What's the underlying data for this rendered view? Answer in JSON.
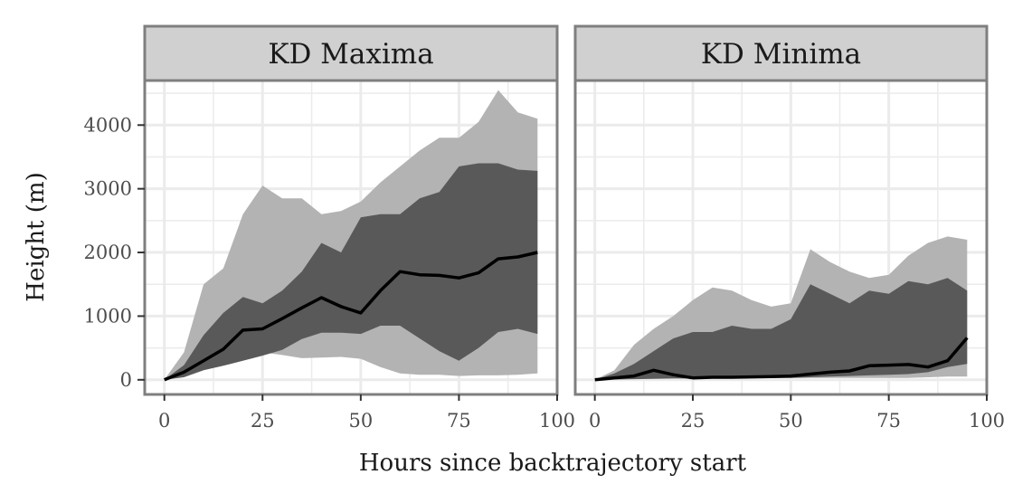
{
  "chart_data": {
    "type": "area",
    "xlabel": "Hours since backtrajectory start",
    "ylabel": "Height (m)",
    "xlim": [
      -5,
      100
    ],
    "ylim": [
      -230,
      4700
    ],
    "x_ticks": [
      0,
      25,
      50,
      75,
      100
    ],
    "y_ticks": [
      0,
      1000,
      2000,
      3000,
      4000
    ],
    "grid": true,
    "colors": {
      "outer_band": "#b3b3b3",
      "inner_band": "#595959",
      "median_line": "#000000",
      "strip_fill": "#d0d0d0",
      "panel_border": "#7f7f7f",
      "grid": "#ebebeb"
    },
    "panels": [
      {
        "title": "KD Maxima",
        "x": [
          0,
          5,
          10,
          15,
          20,
          25,
          30,
          35,
          40,
          45,
          50,
          55,
          60,
          65,
          70,
          75,
          80,
          85,
          90,
          95
        ],
        "outer_low": [
          0,
          70,
          200,
          260,
          350,
          430,
          390,
          340,
          350,
          360,
          330,
          200,
          100,
          80,
          80,
          60,
          70,
          70,
          80,
          100
        ],
        "outer_high": [
          0,
          430,
          1500,
          1750,
          2600,
          3050,
          2850,
          2850,
          2600,
          2650,
          2800,
          3100,
          3350,
          3600,
          3800,
          3800,
          4050,
          4550,
          4200,
          4100
        ],
        "inner_low": [
          0,
          40,
          150,
          220,
          300,
          380,
          470,
          640,
          740,
          740,
          720,
          850,
          850,
          650,
          450,
          300,
          500,
          750,
          800,
          720
        ],
        "inner_high": [
          0,
          230,
          700,
          1050,
          1300,
          1200,
          1400,
          1700,
          2150,
          2000,
          2550,
          2600,
          2600,
          2850,
          2950,
          3350,
          3400,
          3400,
          3300,
          3280
        ],
        "median": [
          0,
          120,
          300,
          480,
          780,
          800,
          960,
          1130,
          1290,
          1150,
          1050,
          1400,
          1700,
          1650,
          1640,
          1600,
          1680,
          1900,
          1930,
          2000
        ]
      },
      {
        "title": "KD Minima",
        "x": [
          0,
          5,
          10,
          15,
          20,
          25,
          30,
          35,
          40,
          45,
          50,
          55,
          60,
          65,
          70,
          75,
          80,
          85,
          90,
          95
        ],
        "outer_low": [
          0,
          10,
          20,
          30,
          30,
          30,
          30,
          30,
          30,
          30,
          30,
          30,
          30,
          30,
          30,
          30,
          30,
          40,
          50,
          50
        ],
        "outer_high": [
          0,
          150,
          550,
          800,
          1000,
          1250,
          1450,
          1400,
          1250,
          1150,
          1200,
          2050,
          1850,
          1700,
          1600,
          1650,
          1950,
          2150,
          2250,
          2200
        ],
        "inner_low": [
          0,
          5,
          10,
          15,
          20,
          20,
          20,
          25,
          30,
          30,
          30,
          40,
          50,
          60,
          70,
          80,
          90,
          120,
          200,
          250
        ],
        "inner_high": [
          0,
          100,
          250,
          450,
          650,
          750,
          750,
          850,
          800,
          800,
          950,
          1500,
          1350,
          1200,
          1400,
          1350,
          1550,
          1500,
          1600,
          1400
        ],
        "median": [
          0,
          30,
          60,
          150,
          80,
          30,
          40,
          40,
          45,
          50,
          60,
          90,
          120,
          140,
          220,
          230,
          240,
          200,
          300,
          660
        ]
      }
    ]
  }
}
